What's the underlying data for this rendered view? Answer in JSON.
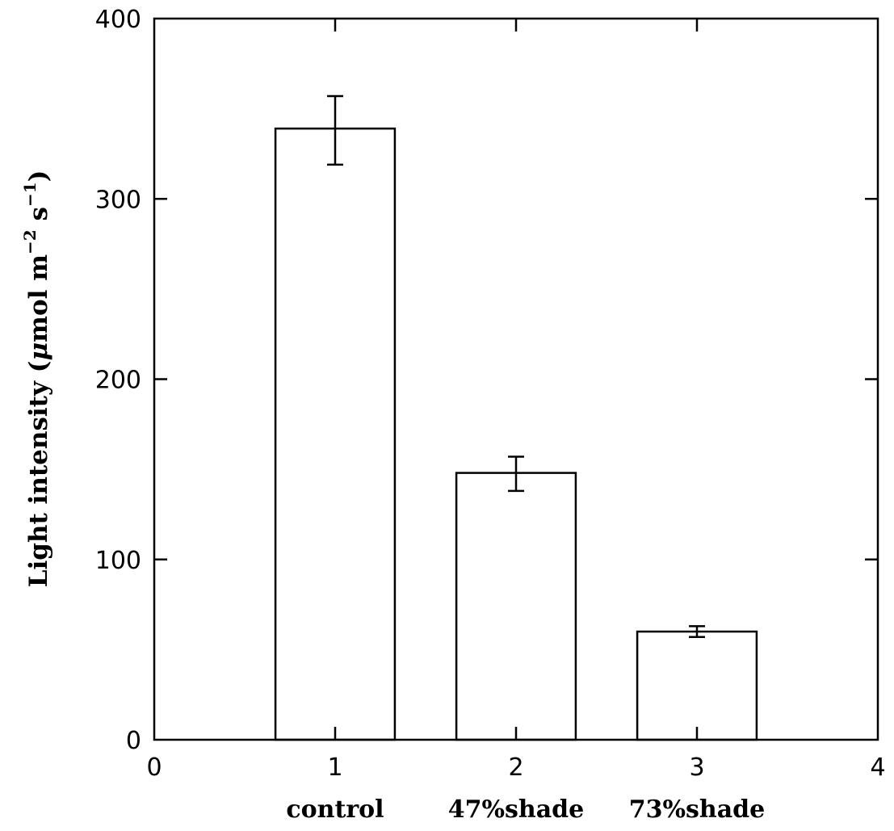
{
  "chart_data": {
    "type": "bar",
    "ylabel": {
      "main": "Light intensity (",
      "mu": "μ",
      "mol_m": "mol m",
      "exp1": "−2",
      "s": " s",
      "exp2": "−1",
      "close": ")"
    },
    "xlim": [
      0,
      4
    ],
    "ylim": [
      0,
      400
    ],
    "xticks": [
      "0",
      "1",
      "2",
      "3",
      "4"
    ],
    "yticks": [
      "0",
      "100",
      "200",
      "300",
      "400"
    ],
    "bars": [
      {
        "x": 1,
        "category": "control",
        "value": 339,
        "err_low": 319,
        "err_high": 357
      },
      {
        "x": 2,
        "category": "47%shade",
        "value": 148,
        "err_low": 138,
        "err_high": 157
      },
      {
        "x": 3,
        "category": "73%shade",
        "value": 60,
        "err_low": 57,
        "err_high": 63
      }
    ],
    "bar_width": 0.66,
    "fill": "#ffffff",
    "stroke": "#000000",
    "grid": false,
    "legend": "none"
  }
}
